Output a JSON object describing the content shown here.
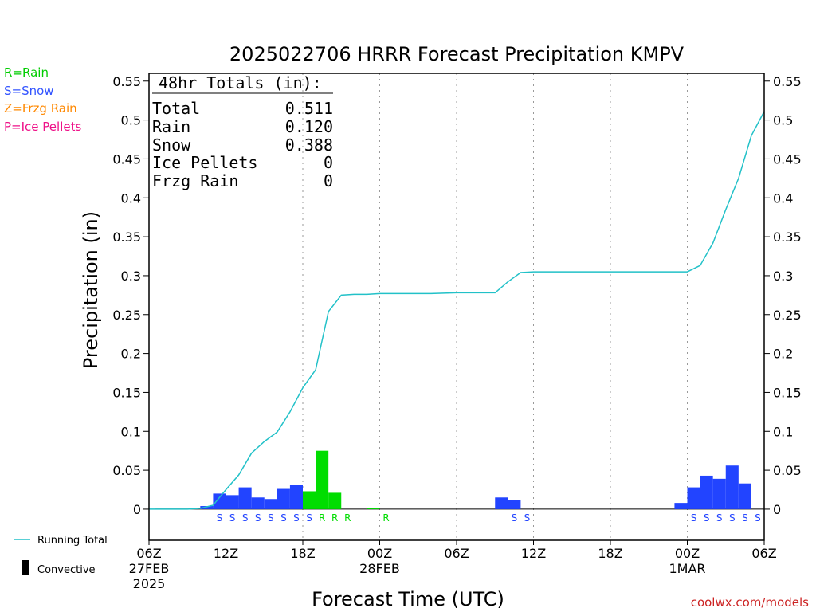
{
  "chart_data": {
    "type": "bar",
    "title": "2025022706 HRRR Forecast Precipitation KMPV",
    "ylabel": "Precipitation (in)",
    "xlabel": "Forecast Time (UTC)",
    "ylim": [
      -0.04,
      0.56
    ],
    "yticks": [
      0,
      0.05,
      0.1,
      0.15,
      0.2,
      0.25,
      0.3,
      0.35,
      0.4,
      0.45,
      0.5,
      0.55
    ],
    "ytick_labels": [
      "0",
      "0.05",
      "0.1",
      "0.15",
      "0.2",
      "0.25",
      "0.3",
      "0.35",
      "0.4",
      "0.45",
      "0.5",
      "0.55"
    ],
    "xlim_hours": [
      0,
      48
    ],
    "xticks": [
      {
        "hour": 0,
        "time": "06Z",
        "date": "27FEB",
        "year": "2025"
      },
      {
        "hour": 6,
        "time": "12Z"
      },
      {
        "hour": 12,
        "time": "18Z"
      },
      {
        "hour": 18,
        "time": "00Z",
        "date": "28FEB"
      },
      {
        "hour": 24,
        "time": "06Z"
      },
      {
        "hour": 30,
        "time": "12Z"
      },
      {
        "hour": 36,
        "time": "18Z"
      },
      {
        "hour": 42,
        "time": "00Z",
        "date": "1MAR"
      },
      {
        "hour": 48,
        "time": "06Z"
      }
    ],
    "gridlines": "dotted-vertical",
    "legend_top_left": [
      {
        "label": "R=Rain",
        "color": "#00cc00"
      },
      {
        "label": "S=Snow",
        "color": "#3355ff"
      },
      {
        "label": "Z=Frzg Rain",
        "color": "#ff8800"
      },
      {
        "label": "P=Ice Pellets",
        "color": "#ee1188"
      }
    ],
    "legend_bottom_left": [
      {
        "label": "Running Total",
        "kind": "line",
        "color": "#22c1c8"
      },
      {
        "label": "Convective",
        "kind": "bar",
        "color": "#000000"
      }
    ],
    "totals_box": {
      "heading": "48hr Totals (in):",
      "rows": [
        {
          "label": "Total",
          "value": "0.511"
        },
        {
          "label": "Rain",
          "value": "0.120"
        },
        {
          "label": "Snow",
          "value": "0.388"
        },
        {
          "label": "Ice Pellets",
          "value": "0"
        },
        {
          "label": "Frzg Rain",
          "value": "0"
        }
      ]
    },
    "precip_type_colors": {
      "S": "#2244ff",
      "R": "#00dd00"
    },
    "hourly_bars": [
      {
        "hour": 5,
        "value": 0.004,
        "ptype": "S"
      },
      {
        "hour": 6,
        "value": 0.02,
        "ptype": "S"
      },
      {
        "hour": 7,
        "value": 0.018,
        "ptype": "S"
      },
      {
        "hour": 8,
        "value": 0.028,
        "ptype": "S"
      },
      {
        "hour": 9,
        "value": 0.015,
        "ptype": "S"
      },
      {
        "hour": 10,
        "value": 0.013,
        "ptype": "S"
      },
      {
        "hour": 11,
        "value": 0.026,
        "ptype": "S"
      },
      {
        "hour": 12,
        "value": 0.031,
        "ptype": "S"
      },
      {
        "hour": 13,
        "value": 0.023,
        "ptype": "R"
      },
      {
        "hour": 14,
        "value": 0.075,
        "ptype": "R"
      },
      {
        "hour": 15,
        "value": 0.021,
        "ptype": "R"
      },
      {
        "hour": 18,
        "value": 0.001,
        "ptype": "R"
      },
      {
        "hour": 28,
        "value": 0.015,
        "ptype": "S"
      },
      {
        "hour": 29,
        "value": 0.012,
        "ptype": "S"
      },
      {
        "hour": 42,
        "value": 0.008,
        "ptype": "S"
      },
      {
        "hour": 43,
        "value": 0.028,
        "ptype": "S"
      },
      {
        "hour": 44,
        "value": 0.043,
        "ptype": "S"
      },
      {
        "hour": 45,
        "value": 0.039,
        "ptype": "S"
      },
      {
        "hour": 46,
        "value": 0.056,
        "ptype": "S"
      },
      {
        "hour": 47,
        "value": 0.033,
        "ptype": "S"
      }
    ],
    "ptype_markers": [
      {
        "hour": 6,
        "label": "S"
      },
      {
        "hour": 7,
        "label": "S"
      },
      {
        "hour": 8,
        "label": "S"
      },
      {
        "hour": 9,
        "label": "S"
      },
      {
        "hour": 10,
        "label": "S"
      },
      {
        "hour": 11,
        "label": "S"
      },
      {
        "hour": 12,
        "label": "S"
      },
      {
        "hour": 13,
        "label": "S"
      },
      {
        "hour": 14,
        "label": "R"
      },
      {
        "hour": 15,
        "label": "R"
      },
      {
        "hour": 16,
        "label": "R"
      },
      {
        "hour": 19,
        "label": "R"
      },
      {
        "hour": 29,
        "label": "S"
      },
      {
        "hour": 30,
        "label": "S"
      },
      {
        "hour": 43,
        "label": "S"
      },
      {
        "hour": 44,
        "label": "S"
      },
      {
        "hour": 45,
        "label": "S"
      },
      {
        "hour": 46,
        "label": "S"
      },
      {
        "hour": 47,
        "label": "S"
      },
      {
        "hour": 48,
        "label": "S"
      }
    ],
    "running_total": {
      "name": "Running Total",
      "x": [
        0,
        1,
        2,
        3,
        4,
        5,
        6,
        7,
        8,
        9,
        10,
        11,
        12,
        13,
        14,
        15,
        16,
        17,
        18,
        20,
        22,
        24,
        26,
        27,
        28,
        29,
        30,
        31,
        32,
        34,
        36,
        38,
        40,
        42,
        43,
        44,
        45,
        46,
        47,
        48
      ],
      "y": [
        0,
        0,
        0,
        0,
        0.001,
        0.005,
        0.025,
        0.044,
        0.072,
        0.087,
        0.099,
        0.125,
        0.156,
        0.179,
        0.254,
        0.275,
        0.276,
        0.276,
        0.277,
        0.277,
        0.277,
        0.278,
        0.278,
        0.278,
        0.292,
        0.304,
        0.305,
        0.305,
        0.305,
        0.305,
        0.305,
        0.305,
        0.305,
        0.305,
        0.313,
        0.342,
        0.385,
        0.425,
        0.48,
        0.511
      ]
    }
  },
  "watermark": "coolwx.com/models"
}
